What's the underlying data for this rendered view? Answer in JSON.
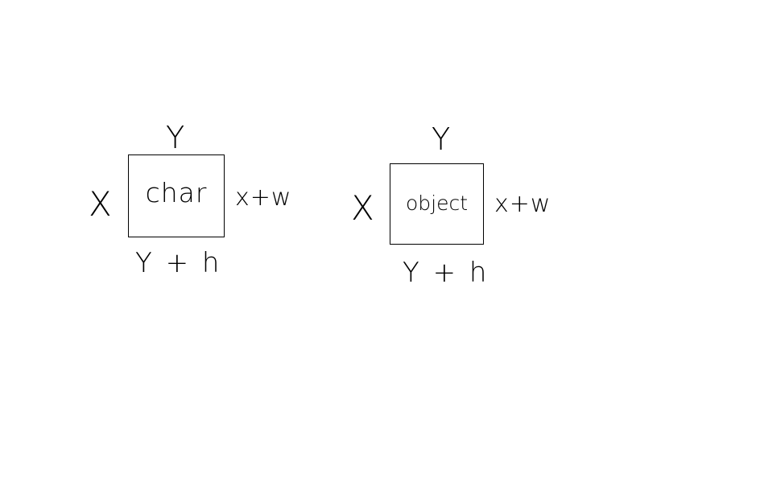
{
  "diagram": {
    "left_figure": {
      "box_label": "char",
      "top_label": "Y",
      "left_label": "X",
      "right_label": "x+w",
      "bottom_label": "Y + h"
    },
    "right_figure": {
      "box_label": "object",
      "top_label": "Y",
      "left_label": "X",
      "right_label": "x+w",
      "bottom_label": "Y + h"
    }
  }
}
